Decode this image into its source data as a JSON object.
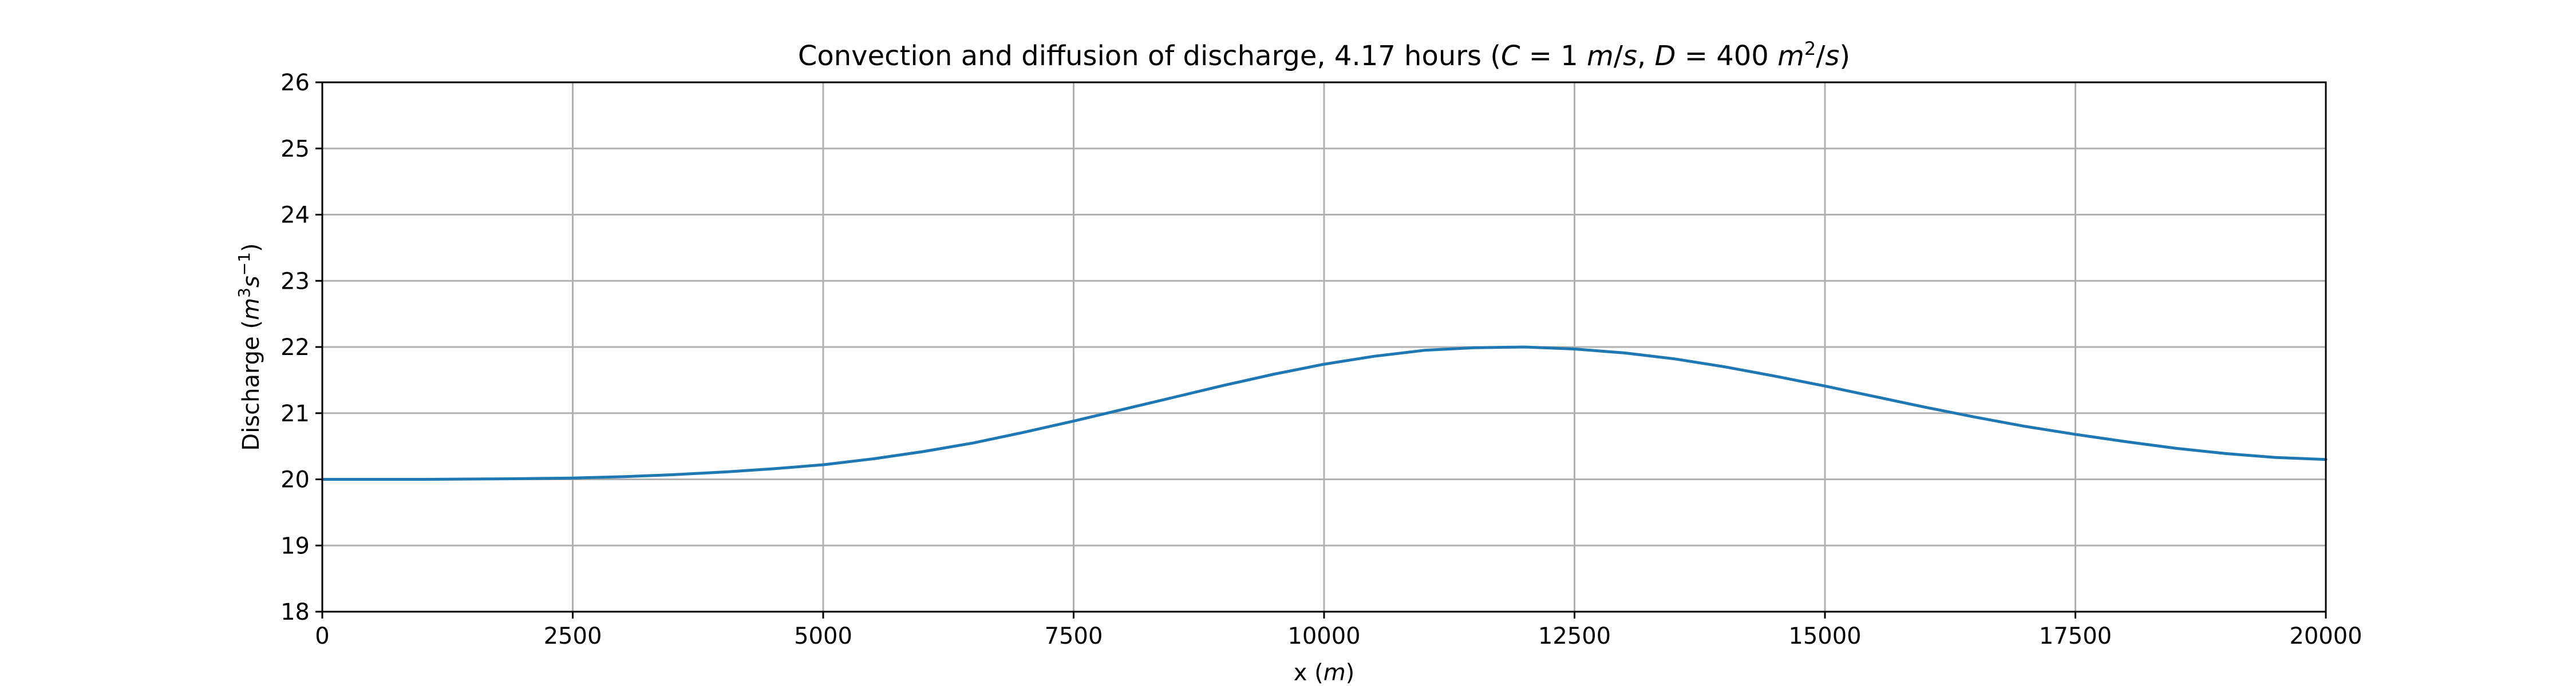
{
  "chart_data": {
    "type": "line",
    "title_parts": {
      "lead": "Convection and diffusion of discharge, 4.17 hours (",
      "c_var": "C",
      "c_eq": " = 1 ",
      "c_unit_m": "m",
      "c_unit_rest": "/",
      "c_unit_s": "s",
      "sep": ", ",
      "d_var": "D",
      "d_eq": " = 400 ",
      "d_unit_m": "m",
      "d_unit_exp": "2",
      "d_unit_rest": "/",
      "d_unit_s": "s",
      "tail": ")"
    },
    "xlabel_parts": {
      "main": "x (",
      "unit": "m",
      "close": ")"
    },
    "ylabel_parts": {
      "main": "Discharge (",
      "m": "m",
      "m_exp": "3",
      "s": "s",
      "s_exp": "−1",
      "close": ")"
    },
    "xlim": [
      0,
      20000
    ],
    "ylim": [
      18,
      26
    ],
    "xticks": [
      0,
      2500,
      5000,
      7500,
      10000,
      12500,
      15000,
      17500,
      20000
    ],
    "xtick_labels": [
      "0",
      "2500",
      "5000",
      "7500",
      "10000",
      "12500",
      "15000",
      "17500",
      "20000"
    ],
    "yticks": [
      18,
      19,
      20,
      21,
      22,
      23,
      24,
      25,
      26
    ],
    "ytick_labels": [
      "18",
      "19",
      "20",
      "21",
      "22",
      "23",
      "24",
      "25",
      "26"
    ],
    "grid": true,
    "series": [
      {
        "color": "#1f77b4",
        "x": [
          0,
          1000,
          2000,
          2500,
          3000,
          3500,
          4000,
          4500,
          5000,
          5500,
          6000,
          6500,
          7000,
          7500,
          8000,
          8500,
          9000,
          9500,
          10000,
          10500,
          11000,
          11500,
          12000,
          12500,
          13000,
          13500,
          14000,
          14500,
          15000,
          15500,
          16000,
          16500,
          17000,
          17500,
          18000,
          18500,
          19000,
          19500,
          20000
        ],
        "y": [
          20.0,
          20.0,
          20.01,
          20.02,
          20.04,
          20.07,
          20.11,
          20.16,
          20.22,
          20.31,
          20.42,
          20.55,
          20.71,
          20.88,
          21.06,
          21.24,
          21.42,
          21.59,
          21.74,
          21.86,
          21.95,
          21.99,
          22.0,
          21.97,
          21.91,
          21.82,
          21.7,
          21.56,
          21.41,
          21.25,
          21.09,
          20.94,
          20.8,
          20.68,
          20.57,
          20.47,
          20.39,
          20.33,
          20.3
        ]
      }
    ]
  }
}
